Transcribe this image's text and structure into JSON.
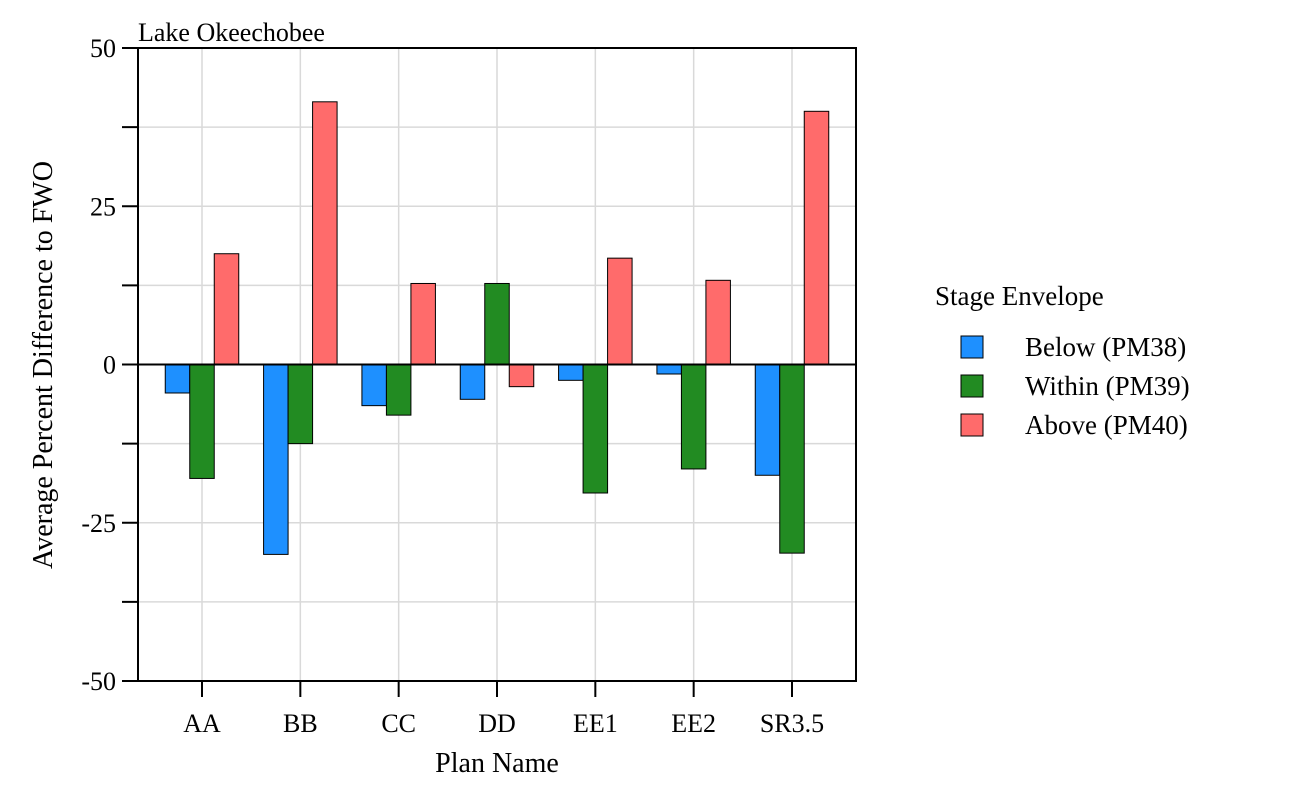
{
  "chart_data": {
    "type": "bar",
    "title": "Lake Okeechobee",
    "xlabel": "Plan Name",
    "ylabel": "Average Percent Difference to FWO",
    "categories": [
      "AA",
      "BB",
      "CC",
      "DD",
      "EE1",
      "EE2",
      "SR3.5"
    ],
    "ylim": [
      -50,
      50
    ],
    "yticks": [
      50,
      25,
      0,
      -25,
      -50
    ],
    "grid": true,
    "legend": {
      "title": "Stage Envelope",
      "position": "right"
    },
    "series": [
      {
        "name": "Below (PM38)",
        "color": "#1E90FF",
        "values": [
          -4.5,
          -30,
          -6.5,
          -5.5,
          -2.5,
          -1.5,
          -17.5
        ]
      },
      {
        "name": "Within (PM39)",
        "color": "#228B22",
        "values": [
          -18,
          -12.5,
          -8,
          12.8,
          -20.3,
          -16.5,
          -29.8
        ]
      },
      {
        "name": "Above (PM40)",
        "color": "#FF6B6B",
        "values": [
          17.5,
          41.5,
          12.8,
          -3.5,
          16.8,
          13.3,
          40
        ]
      }
    ]
  }
}
